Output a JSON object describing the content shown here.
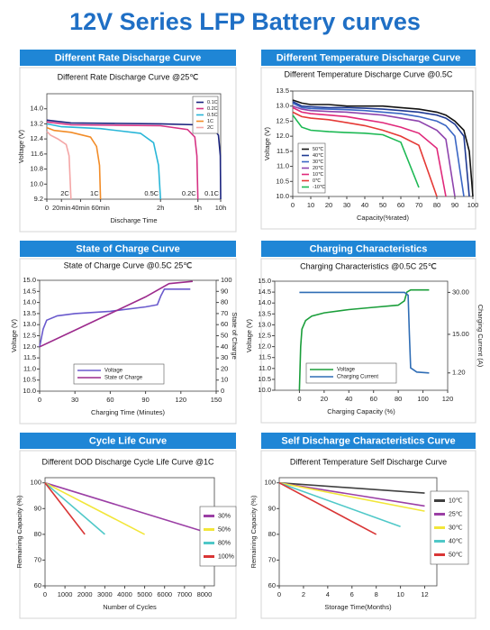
{
  "title": "12V Series LFP Battery curves",
  "chart_data": [
    {
      "type": "line",
      "header": "Different Rate Discharge Curve",
      "title": "Different Rate Discharge Curve @25℃",
      "x_label": "Discharge Time",
      "y_label": "Voltage (V)",
      "legend": "upper right",
      "end_labels": true,
      "xlim": [
        0,
        600
      ],
      "xticks": [
        0,
        {
          "value": 20,
          "label": "20min"
        },
        {
          "value": 40,
          "label": "40min"
        },
        {
          "value": 60,
          "label": "60min"
        },
        {
          "value": 120,
          "label": "2h"
        },
        {
          "value": 300,
          "label": "5h"
        },
        {
          "value": 600,
          "label": "10h"
        }
      ],
      "ylim": [
        9.2,
        14.8
      ],
      "yticks": [
        9.2,
        {
          "value": 10,
          "label": "10.0"
        },
        10.8,
        11.6,
        12.4,
        13.2,
        {
          "value": 14,
          "label": "14.0"
        }
      ],
      "series": [
        {
          "name": "0.1C",
          "color": "#1a237e",
          "x": [
            0,
            30,
            120,
            300,
            500,
            570,
            595,
            600
          ],
          "values": [
            13.4,
            13.25,
            13.2,
            13.15,
            13.0,
            12.6,
            11.5,
            9.2
          ]
        },
        {
          "name": "0.2C",
          "color": "#d63384",
          "x": [
            0,
            30,
            120,
            250,
            285,
            295,
            300
          ],
          "values": [
            13.3,
            13.15,
            13.1,
            12.9,
            12.5,
            11.5,
            9.2
          ]
        },
        {
          "name": "0.5C",
          "color": "#29b6d8",
          "x": [
            0,
            20,
            60,
            100,
            113,
            118,
            120
          ],
          "values": [
            13.2,
            13.05,
            12.95,
            12.7,
            12.2,
            11.0,
            9.2
          ]
        },
        {
          "name": "1C",
          "color": "#f28c28",
          "x": [
            0,
            10,
            30,
            50,
            56,
            59,
            60
          ],
          "values": [
            13.0,
            12.85,
            12.75,
            12.5,
            12.0,
            11.0,
            9.2
          ]
        },
        {
          "name": "2C",
          "color": "#f4a6a6",
          "x": [
            0,
            5,
            15,
            25,
            28,
            30
          ],
          "values": [
            12.8,
            12.6,
            12.4,
            12.1,
            11.5,
            9.2
          ]
        }
      ]
    },
    {
      "type": "line",
      "header": "Different Temperature Discharge Curve",
      "title": "Different Temperature Discharge Curve @0.5C",
      "x_label": "Capacity(%rated)",
      "y_label": "Voltage (V)",
      "legend": "lower left",
      "xlim": [
        0,
        100
      ],
      "xticks": [
        0,
        10,
        20,
        30,
        40,
        50,
        60,
        70,
        80,
        90,
        100
      ],
      "ylim": [
        10,
        13.5
      ],
      "yticks": [
        {
          "value": 10,
          "label": "10.0"
        },
        10.5,
        {
          "value": 11,
          "label": "11.0"
        },
        11.5,
        {
          "value": 12,
          "label": "12.0"
        },
        12.5,
        {
          "value": 13,
          "label": "13.0"
        },
        13.5
      ],
      "x": [
        0,
        5,
        10,
        20,
        30,
        40,
        50,
        60,
        70,
        80,
        85,
        90,
        95,
        98,
        100
      ],
      "series": [
        {
          "name": "50℃",
          "color": "#111111",
          "values": [
            13.2,
            13.1,
            13.05,
            13.05,
            13.0,
            13.0,
            13.0,
            12.95,
            12.9,
            12.8,
            12.7,
            12.5,
            12.2,
            11.5,
            10.0
          ]
        },
        {
          "name": "40℃",
          "color": "#1f3a93",
          "values": [
            13.15,
            13.0,
            12.98,
            12.95,
            12.95,
            12.93,
            12.9,
            12.85,
            12.8,
            12.7,
            12.6,
            12.4,
            12.0,
            10.0,
            null
          ]
        },
        {
          "name": "30℃",
          "color": "#3a66c4",
          "values": [
            13.1,
            12.95,
            12.92,
            12.9,
            12.88,
            12.85,
            12.8,
            12.75,
            12.65,
            12.5,
            12.35,
            12.0,
            10.0,
            null,
            null
          ]
        },
        {
          "name": "20℃",
          "color": "#8e44ad",
          "values": [
            13.0,
            12.9,
            12.85,
            12.82,
            12.8,
            12.75,
            12.7,
            12.6,
            12.5,
            12.2,
            11.9,
            10.0,
            null,
            null,
            null
          ]
        },
        {
          "name": "10℃",
          "color": "#e0287a",
          "values": [
            12.95,
            12.8,
            12.75,
            12.7,
            12.65,
            12.55,
            12.45,
            12.3,
            12.1,
            11.6,
            10.0,
            null,
            null,
            null,
            null
          ]
        },
        {
          "name": "0℃",
          "color": "#e53935",
          "values": [
            12.8,
            12.65,
            12.6,
            12.55,
            12.45,
            12.35,
            12.2,
            12.0,
            11.7,
            10.0,
            null,
            null,
            null,
            null,
            null
          ]
        },
        {
          "name": "-10℃",
          "color": "#1db954",
          "values": [
            12.7,
            12.3,
            12.2,
            12.15,
            12.12,
            12.1,
            12.05,
            11.8,
            10.3,
            null,
            null,
            null,
            null,
            null,
            null
          ]
        }
      ]
    },
    {
      "type": "line",
      "header": "State of Charge Curve",
      "title": "State of Charge Curve @0.5C 25℃",
      "x_label": "Charging Time (Minutes)",
      "y_label": "Voltage (V)",
      "y2_label": "State of Charge",
      "legend": "lower left",
      "xlim": [
        0,
        150
      ],
      "xticks": [
        0,
        30,
        60,
        90,
        120,
        150
      ],
      "ylim": [
        10,
        15
      ],
      "yticks": [
        {
          "value": 10,
          "label": "10.0"
        },
        10.5,
        {
          "value": 11,
          "label": "11.0"
        },
        11.5,
        {
          "value": 12,
          "label": "12.0"
        },
        12.5,
        {
          "value": 13,
          "label": "13.0"
        },
        13.5,
        {
          "value": 14,
          "label": "14.0"
        },
        14.5,
        {
          "value": 15,
          "label": "15.0"
        }
      ],
      "y2lim": [
        0,
        100
      ],
      "y2ticks": [
        0,
        10,
        20,
        30,
        40,
        50,
        60,
        70,
        80,
        90,
        100
      ],
      "series": [
        {
          "name": "Voltage",
          "color": "#6a5acd",
          "x": [
            0,
            3,
            6,
            15,
            30,
            60,
            90,
            100,
            103,
            106,
            128
          ],
          "values": [
            12.0,
            12.8,
            13.2,
            13.4,
            13.5,
            13.6,
            13.8,
            13.9,
            14.3,
            14.6,
            14.6
          ]
        },
        {
          "name": "State of Charge",
          "color": "#9c2a8c",
          "axis": "y2",
          "x": [
            0,
            30,
            60,
            90,
            110,
            130
          ],
          "values": [
            40,
            55,
            70,
            85,
            97,
            99
          ]
        }
      ]
    },
    {
      "type": "line",
      "header": "Charging Characteristics",
      "title": "Charging Characteristics @0.5C 25℃",
      "x_label": "Charging Capacity (%)",
      "y_label": "Voltage (V)",
      "y2_label": "Charging Current (A)",
      "legend": "lower left",
      "xlim": [
        -20,
        120
      ],
      "xticks": [
        0,
        20,
        40,
        60,
        80,
        100,
        120
      ],
      "ylim": [
        10,
        15
      ],
      "yticks": [
        {
          "value": 10,
          "label": "10.0"
        },
        10.5,
        {
          "value": 11,
          "label": "11.0"
        },
        11.5,
        {
          "value": 12,
          "label": "12.0"
        },
        12.5,
        {
          "value": 13,
          "label": "13.0"
        },
        13.5,
        {
          "value": 14,
          "label": "14.0"
        },
        14.5,
        {
          "value": 15,
          "label": "15.0"
        }
      ],
      "y2lim": [
        -5,
        34
      ],
      "y2ticks": [
        {
          "value": 1.2,
          "label": "1.20"
        },
        {
          "value": 15,
          "label": "15.00"
        },
        {
          "value": 30,
          "label": "30.00"
        }
      ],
      "series": [
        {
          "name": "Voltage",
          "color": "#1a9e3a",
          "x": [
            0,
            1,
            2,
            5,
            10,
            20,
            40,
            60,
            80,
            85,
            87,
            90,
            105
          ],
          "values": [
            10.0,
            12.0,
            12.8,
            13.2,
            13.4,
            13.55,
            13.7,
            13.8,
            13.9,
            14.1,
            14.5,
            14.6,
            14.6
          ]
        },
        {
          "name": "Charging Current",
          "color": "#2f6db5",
          "axis": "y2",
          "x": [
            0,
            85,
            88,
            89,
            90,
            95,
            105
          ],
          "values": [
            30,
            30,
            29,
            15,
            3,
            1.5,
            1.2
          ]
        }
      ]
    },
    {
      "type": "line",
      "header": "Cycle Life Curve",
      "title": "Different DOD Discharge Cycle Life Curve @1C",
      "x_label": "Number of Cycles",
      "y_label": "Remaining Capacity (%)",
      "legend": "right",
      "xlim": [
        0,
        8500
      ],
      "xticks": [
        0,
        1000,
        2000,
        3000,
        4000,
        5000,
        6000,
        7000,
        8000
      ],
      "ylim": [
        60,
        102
      ],
      "yticks": [
        60,
        70,
        80,
        90,
        100
      ],
      "series": [
        {
          "name": "30%",
          "color": "#9b3fa5",
          "x": [
            0,
            8000
          ],
          "values": [
            100,
            81
          ]
        },
        {
          "name": "50%",
          "color": "#f2e63a",
          "x": [
            0,
            5000
          ],
          "values": [
            100,
            80
          ]
        },
        {
          "name": "80%",
          "color": "#4fc8c8",
          "x": [
            0,
            3000
          ],
          "values": [
            100,
            80
          ]
        },
        {
          "name": "100%",
          "color": "#d93535",
          "x": [
            0,
            2000
          ],
          "values": [
            100,
            80
          ]
        }
      ]
    },
    {
      "type": "line",
      "header": "Self Discharge Characteristics Curve",
      "title": "Different Temperature Self Discharge Curve",
      "x_label": "Storage Time(Months)",
      "y_label": "Remaining Capacity (%)",
      "legend": "right",
      "xlim": [
        0,
        13
      ],
      "xticks": [
        0,
        2,
        4,
        6,
        8,
        10,
        12
      ],
      "ylim": [
        60,
        102
      ],
      "yticks": [
        60,
        70,
        80,
        90,
        100
      ],
      "series": [
        {
          "name": "10℃",
          "color": "#404040",
          "x": [
            0,
            12
          ],
          "values": [
            100,
            96
          ]
        },
        {
          "name": "25℃",
          "color": "#9b3fa5",
          "x": [
            0,
            12
          ],
          "values": [
            100,
            91
          ]
        },
        {
          "name": "30℃",
          "color": "#f2e63a",
          "x": [
            0,
            12
          ],
          "values": [
            100,
            89
          ]
        },
        {
          "name": "40℃",
          "color": "#4fc8c8",
          "x": [
            0,
            10
          ],
          "values": [
            100,
            83
          ]
        },
        {
          "name": "50℃",
          "color": "#d93535",
          "x": [
            0,
            8
          ],
          "values": [
            100,
            80
          ]
        }
      ]
    }
  ]
}
